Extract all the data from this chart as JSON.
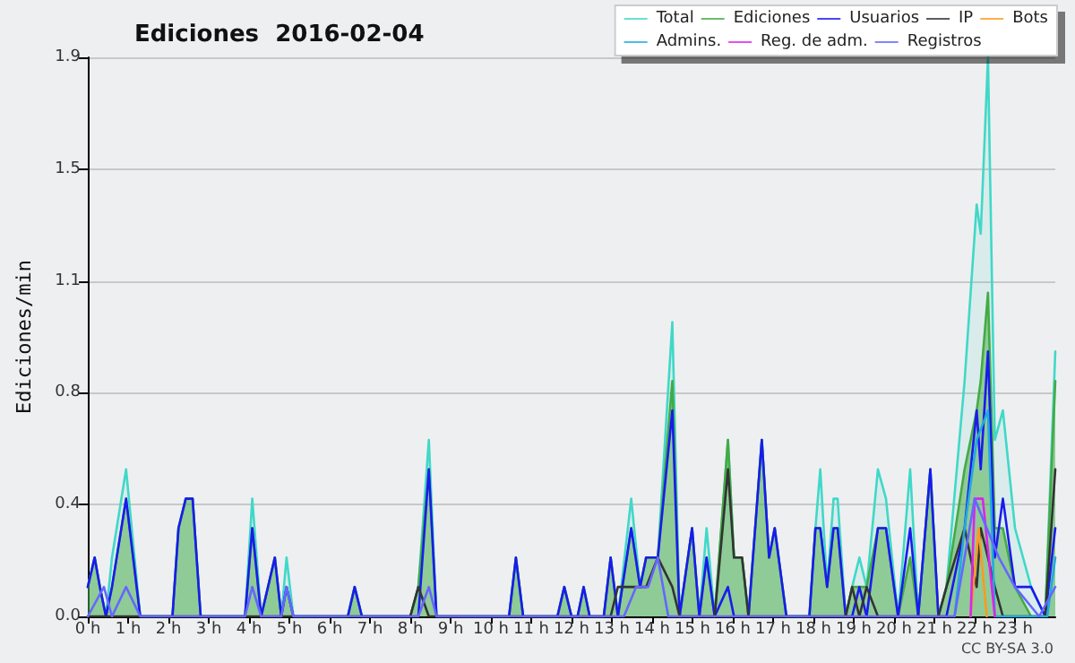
{
  "chart_data": {
    "type": "area",
    "title": "Ediciones  2016-02-04",
    "ylabel": "Ediciones/min",
    "annotations": [
      "CC BY-SA 3.0"
    ],
    "x": [
      0,
      0.17,
      0.3,
      0.45,
      0.6,
      0.95,
      1.3,
      2.1,
      2.25,
      2.43,
      2.6,
      2.8,
      3.9,
      4.08,
      4.3,
      4.64,
      4.8,
      4.93,
      5.1,
      6.45,
      6.62,
      6.8,
      8.0,
      8.2,
      8.46,
      8.65,
      10.45,
      10.62,
      10.8,
      11.65,
      11.82,
      12.0,
      12.15,
      12.3,
      12.45,
      12.8,
      12.97,
      13.15,
      13.48,
      13.7,
      13.85,
      14.14,
      14.5,
      14.68,
      14.99,
      15.17,
      15.35,
      15.55,
      15.88,
      16.03,
      16.23,
      16.39,
      16.72,
      16.9,
      17.04,
      17.33,
      17.9,
      18.05,
      18.17,
      18.34,
      18.5,
      18.6,
      18.8,
      18.96,
      19.14,
      19.32,
      19.6,
      19.8,
      20.1,
      20.4,
      20.6,
      20.9,
      21.1,
      21.3,
      21.75,
      22.05,
      22.15,
      22.33,
      22.5,
      22.7,
      23.0,
      23.4,
      23.75,
      24
    ],
    "series": [
      {
        "name": "Total",
        "color": "#40d8c8",
        "values": [
          0.1,
          0.2,
          0.1,
          0,
          0.2,
          0.5,
          0,
          0,
          0.3,
          0.4,
          0.4,
          0,
          0,
          0.4,
          0,
          0.2,
          0,
          0.2,
          0,
          0,
          0.1,
          0,
          0,
          0.1,
          0.6,
          0,
          0,
          0.2,
          0,
          0,
          0.1,
          0,
          0,
          0.1,
          0,
          0,
          0.2,
          0,
          0.4,
          0.1,
          0.2,
          0.2,
          1.0,
          0,
          0.3,
          0,
          0.3,
          0,
          0.6,
          0.2,
          0.2,
          0,
          0.6,
          0.2,
          0.3,
          0,
          0,
          0.3,
          0.5,
          0.1,
          0.4,
          0.4,
          0,
          0.1,
          0.2,
          0.1,
          0.5,
          0.4,
          0,
          0.5,
          0,
          0.5,
          0,
          0.1,
          0.8,
          1.4,
          1.3,
          1.9,
          0.6,
          0.7,
          0.3,
          0.1,
          0,
          0.9
        ]
      },
      {
        "name": "Ediciones",
        "color": "#44aa44",
        "values": [
          0.1,
          0.2,
          0.1,
          0,
          0.1,
          0.4,
          0,
          0,
          0.3,
          0.4,
          0.4,
          0,
          0,
          0.3,
          0,
          0.2,
          0,
          0.1,
          0,
          0,
          0.1,
          0,
          0,
          0.1,
          0.5,
          0,
          0,
          0.2,
          0,
          0,
          0.1,
          0,
          0,
          0.1,
          0,
          0,
          0.2,
          0,
          0.3,
          0.1,
          0.2,
          0.2,
          0.8,
          0,
          0.3,
          0,
          0.2,
          0,
          0.6,
          0.2,
          0.2,
          0,
          0.6,
          0.2,
          0.3,
          0,
          0,
          0.3,
          0.3,
          0.1,
          0.3,
          0.3,
          0,
          0.1,
          0.1,
          0.1,
          0.3,
          0.3,
          0,
          0.2,
          0,
          0.5,
          0,
          0.1,
          0.5,
          0.7,
          0.8,
          1.1,
          0.3,
          0.3,
          0.1,
          0,
          0,
          0.8
        ]
      },
      {
        "name": "Usuarios",
        "type": "line",
        "color": "#1a1aee",
        "values": [
          0.1,
          0.2,
          0.1,
          0,
          0.1,
          0.4,
          0,
          0,
          0.3,
          0.4,
          0.4,
          0,
          0,
          0.3,
          0,
          0.2,
          0,
          0.1,
          0,
          0,
          0.1,
          0,
          0,
          0,
          0.5,
          0,
          0,
          0.2,
          0,
          0,
          0.1,
          0,
          0,
          0.1,
          0,
          0,
          0.2,
          0,
          0.3,
          0.1,
          0.2,
          0.2,
          0.7,
          0,
          0.3,
          0,
          0.2,
          0,
          0.1,
          0,
          0,
          0,
          0.6,
          0.2,
          0.3,
          0,
          0,
          0.3,
          0.3,
          0.1,
          0.3,
          0.3,
          0,
          0,
          0.1,
          0,
          0.3,
          0.3,
          0,
          0.3,
          0,
          0.5,
          0,
          0,
          0.3,
          0.7,
          0.5,
          0.9,
          0.2,
          0.4,
          0.1,
          0.1,
          0,
          0.3
        ]
      },
      {
        "name": "IP",
        "type": "line",
        "color": "#333333",
        "values": [
          0,
          0,
          0,
          0,
          0,
          0,
          0,
          0,
          0,
          0,
          0,
          0,
          0,
          0,
          0,
          0,
          0,
          0,
          0,
          0,
          0,
          0,
          0,
          0.1,
          0,
          0,
          0,
          0,
          0,
          0,
          0,
          0,
          0,
          0,
          0,
          0,
          0,
          0.1,
          0.1,
          0.1,
          0.1,
          0.2,
          0.1,
          0,
          0,
          0,
          0,
          0,
          0.5,
          0.2,
          0.2,
          0,
          0,
          0,
          0,
          0,
          0,
          0,
          0,
          0,
          0,
          0,
          0,
          0.1,
          0,
          0.1,
          0,
          0,
          0,
          0,
          0,
          0,
          0,
          0.1,
          0.3,
          0.1,
          0.3,
          0.2,
          0.1,
          0,
          0,
          0,
          0,
          0.5
        ]
      },
      {
        "name": "Bots",
        "type": "line",
        "color": "#ff9922",
        "x": [
          21.9,
          22.1,
          22.3
        ],
        "values": [
          0,
          0.3,
          0
        ]
      },
      {
        "name": "Admins.",
        "type": "line",
        "color": "#22aadd",
        "x": [
          21.5,
          21.75,
          22.05,
          22.33,
          22.5,
          23.8,
          24
        ],
        "values": [
          0,
          0.3,
          0.6,
          0.7,
          0,
          0,
          0.2
        ]
      },
      {
        "name": "Reg. de adm.",
        "type": "line",
        "color": "#dd22ee",
        "x": [
          21.9,
          22.0,
          22.2,
          22.5
        ],
        "values": [
          0,
          0.4,
          0.4,
          0
        ]
      },
      {
        "name": "Registros",
        "type": "line",
        "color": "#6666ff",
        "x": [
          0,
          0.4,
          0.6,
          0.95,
          1.3,
          3.9,
          4.08,
          4.3,
          4.8,
          4.93,
          5.1,
          8.2,
          8.46,
          8.65,
          13.3,
          13.6,
          13.9,
          14.14,
          14.4,
          21.5,
          22.0,
          22.3,
          22.6,
          23.0,
          23.6,
          24
        ],
        "values": [
          0,
          0.1,
          0,
          0.1,
          0,
          0,
          0.1,
          0,
          0,
          0.1,
          0,
          0,
          0.1,
          0,
          0,
          0.1,
          0.1,
          0.2,
          0,
          0,
          0.4,
          0.3,
          0.2,
          0.1,
          0,
          0.1
        ]
      }
    ],
    "xlim": [
      0,
      24
    ],
    "xticks": [
      {
        "value": 0,
        "label": "0 h"
      },
      {
        "value": 1,
        "label": "1 h"
      },
      {
        "value": 2,
        "label": "2 h"
      },
      {
        "value": 3,
        "label": "3 h"
      },
      {
        "value": 4,
        "label": "4 h"
      },
      {
        "value": 5,
        "label": "5 h"
      },
      {
        "value": 6,
        "label": "6 h"
      },
      {
        "value": 7,
        "label": "7 h"
      },
      {
        "value": 8,
        "label": "8 h"
      },
      {
        "value": 9,
        "label": "9 h"
      },
      {
        "value": 10,
        "label": "10 h"
      },
      {
        "value": 11,
        "label": "11 h"
      },
      {
        "value": 12,
        "label": "12 h"
      },
      {
        "value": 13,
        "label": "13 h"
      },
      {
        "value": 14,
        "label": "14 h"
      },
      {
        "value": 15,
        "label": "15 h"
      },
      {
        "value": 16,
        "label": "16 h"
      },
      {
        "value": 17,
        "label": "17 h"
      },
      {
        "value": 18,
        "label": "18 h"
      },
      {
        "value": 19,
        "label": "19 h"
      },
      {
        "value": 20,
        "label": "20 h"
      },
      {
        "value": 21,
        "label": "21 h"
      },
      {
        "value": 22,
        "label": "22 h"
      },
      {
        "value": 23,
        "label": "23 h"
      }
    ],
    "ylim": [
      0,
      1.9
    ],
    "yticks": [
      {
        "value": 0,
        "label": "0.0"
      },
      {
        "value": 0.38,
        "label": "0.4"
      },
      {
        "value": 0.76,
        "label": "0.8"
      },
      {
        "value": 1.14,
        "label": "1.1"
      },
      {
        "value": 1.52,
        "label": "1.5"
      },
      {
        "value": 1.9,
        "label": "1.9"
      }
    ],
    "grid": "y",
    "legend": "top right",
    "marker": "none",
    "line_style": "solid"
  }
}
